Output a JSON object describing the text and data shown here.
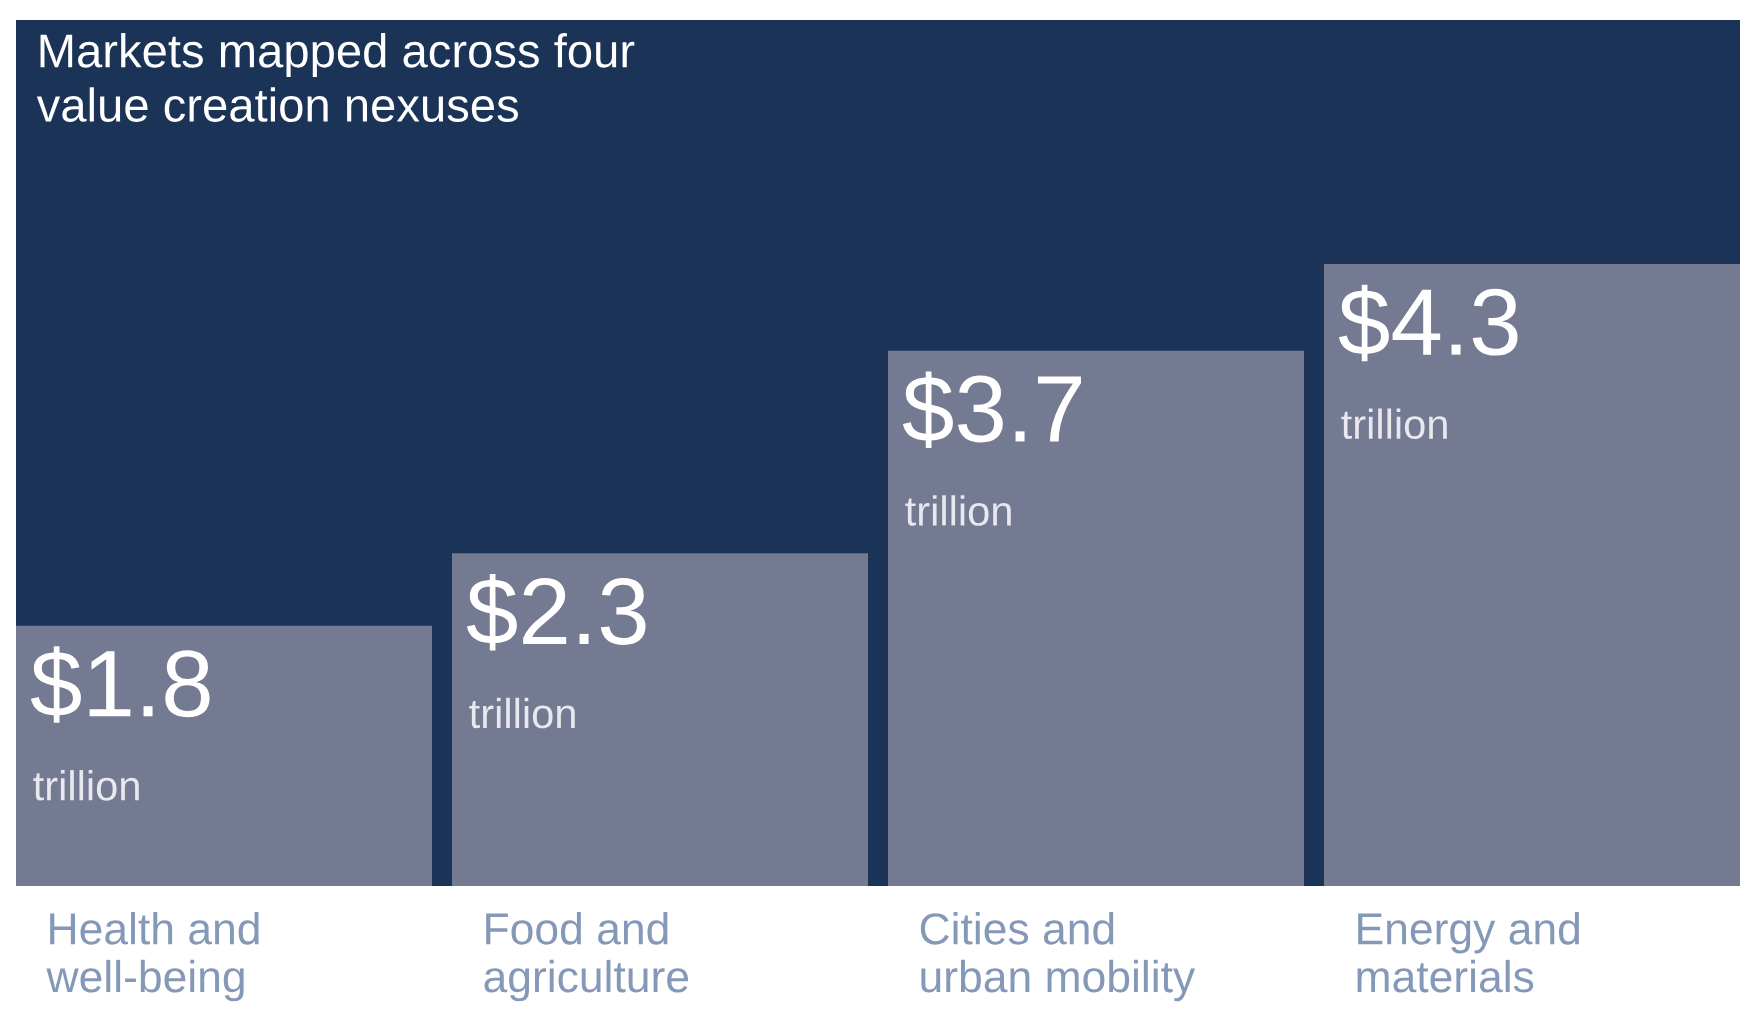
{
  "chart_data": {
    "type": "bar",
    "title": "Markets mapped across four\nvalue creation nexuses",
    "categories": [
      "Health and\nwell-being",
      "Food and\nagriculture",
      "Cities and\nurban mobility",
      "Energy and\nmaterials"
    ],
    "values": [
      1.8,
      2.3,
      3.7,
      4.3
    ],
    "color": "#747a92",
    "value_labels": [
      "$1.8 trillion",
      "$2.3 trillion",
      "$3.7 trillion",
      "$4.3 trillion"
    ],
    "tick_labels": "x"
  }
}
